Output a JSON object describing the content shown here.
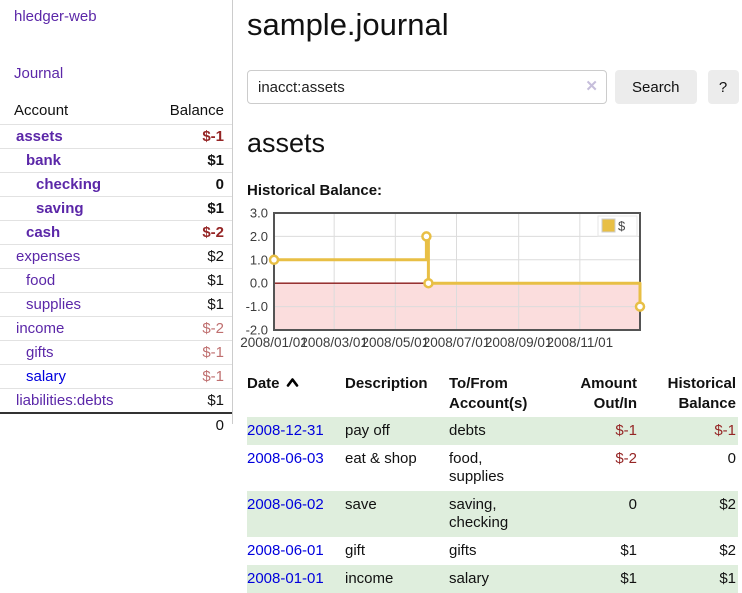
{
  "app": {
    "title": "hledger-web"
  },
  "colors": {
    "accent_purple": "#5b27a8",
    "link_blue": "#0000dd",
    "negative_strong": "#952525",
    "negative_soft": "#bf6f6f",
    "row_green": "#dfeedd",
    "button_bg": "#ececec",
    "series_gold": "#e8bf45"
  },
  "sidebar": {
    "nav": {
      "journal_label": "Journal"
    },
    "accounts": {
      "header_account": "Account",
      "header_balance": "Balance",
      "rows": [
        {
          "name": "assets",
          "indent": 1,
          "balance": "$-1",
          "bold": true,
          "neg": "strong",
          "link": "purple"
        },
        {
          "name": "bank",
          "indent": 2,
          "balance": "$1",
          "bold": true,
          "neg": "none",
          "link": "purple"
        },
        {
          "name": "checking",
          "indent": 3,
          "balance": "0",
          "bold": true,
          "neg": "none",
          "link": "purple"
        },
        {
          "name": "saving",
          "indent": 3,
          "balance": "$1",
          "bold": true,
          "neg": "none",
          "link": "purple"
        },
        {
          "name": "cash",
          "indent": 2,
          "balance": "$-2",
          "bold": true,
          "neg": "strong",
          "link": "purple"
        },
        {
          "name": "expenses",
          "indent": 1,
          "balance": "$2",
          "bold": false,
          "neg": "none",
          "link": "purple"
        },
        {
          "name": "food",
          "indent": 2,
          "balance": "$1",
          "bold": false,
          "neg": "none",
          "link": "purple"
        },
        {
          "name": "supplies",
          "indent": 2,
          "balance": "$1",
          "bold": false,
          "neg": "none",
          "link": "purple"
        },
        {
          "name": "income",
          "indent": 1,
          "balance": "$-2",
          "bold": false,
          "neg": "soft",
          "link": "purple"
        },
        {
          "name": "gifts",
          "indent": 2,
          "balance": "$-1",
          "bold": false,
          "neg": "soft",
          "link": "purple"
        },
        {
          "name": "salary",
          "indent": 2,
          "balance": "$-1",
          "bold": false,
          "neg": "soft",
          "link": "blue"
        },
        {
          "name": "liabilities:debts",
          "indent": 1,
          "balance": "$1",
          "bold": false,
          "neg": "none",
          "link": "purple"
        }
      ],
      "total": "0"
    }
  },
  "main": {
    "title": "sample.journal",
    "search": {
      "value": "inacct:assets",
      "clear_icon": "✕",
      "search_button": "Search",
      "help_button": "?"
    },
    "account_heading": "assets",
    "chart_heading": "Historical Balance:",
    "register": {
      "headers": {
        "date": "Date",
        "description": "Description",
        "accounts": "To/From Account(s)",
        "amount": "Amount Out/In",
        "balance": "Historical Balance"
      },
      "sort": "date-ascending",
      "rows": [
        {
          "date": "2008-12-31",
          "description": "pay off",
          "accounts": "debts",
          "amount": "$-1",
          "amount_neg": true,
          "balance": "$-1",
          "balance_neg": true,
          "green": true
        },
        {
          "date": "2008-06-03",
          "description": "eat & shop",
          "accounts": "food, supplies",
          "amount": "$-2",
          "amount_neg": true,
          "balance": "0",
          "balance_neg": false,
          "green": false
        },
        {
          "date": "2008-06-02",
          "description": "save",
          "accounts": "saving, checking",
          "amount": "0",
          "amount_neg": false,
          "balance": "$2",
          "balance_neg": false,
          "green": true
        },
        {
          "date": "2008-06-01",
          "description": "gift",
          "accounts": "gifts",
          "amount": "$1",
          "amount_neg": false,
          "balance": "$2",
          "balance_neg": false,
          "green": false
        },
        {
          "date": "2008-01-01",
          "description": "income",
          "accounts": "salary",
          "amount": "$1",
          "amount_neg": false,
          "balance": "$1",
          "balance_neg": false,
          "green": true
        }
      ]
    }
  },
  "chart_data": {
    "type": "line",
    "step": true,
    "title": "Historical Balance",
    "series": [
      {
        "name": "$",
        "color": "#e8bf45",
        "points": [
          [
            "2008-01-01",
            1
          ],
          [
            "2008-06-01",
            2
          ],
          [
            "2008-06-03",
            0
          ],
          [
            "2008-12-31",
            -1
          ]
        ]
      }
    ],
    "x_range": [
      "2008-01-01",
      "2008-12-31"
    ],
    "x_ticks": [
      "2008/01/01",
      "2008/03/01",
      "2008/05/01",
      "2008/07/01",
      "2008/09/01",
      "2008/11/01"
    ],
    "y_tick_labels": [
      "3.0",
      "2.0",
      "1.0",
      "0.0",
      "-1.0",
      "-2.0"
    ],
    "ylim": [
      -2,
      3
    ],
    "grid": true,
    "grid_color": "#dcdcdc",
    "border_color": "#545454",
    "negative_region_color": "#fbdddd",
    "zero_line_color": "#8b1a1a",
    "label_color": "#3c3c3c",
    "legend": {
      "position": "top-right",
      "label": "$"
    }
  }
}
